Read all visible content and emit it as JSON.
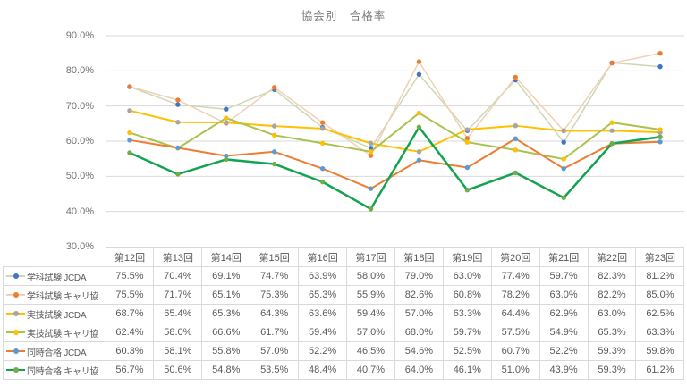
{
  "title": "協会別　合格率",
  "chart_data": {
    "type": "line",
    "title": "協会別　合格率",
    "categories": [
      "第12回",
      "第13回",
      "第14回",
      "第15回",
      "第16回",
      "第17回",
      "第18回",
      "第19回",
      "第20回",
      "第21回",
      "第22回",
      "第23回"
    ],
    "series": [
      {
        "name": "学科試験 JCDA",
        "line_color": "#ccd8b3",
        "marker_color": "#4472c4",
        "line_width": 1.5,
        "values": [
          75.5,
          70.4,
          69.1,
          74.7,
          63.9,
          58.0,
          79.0,
          63.0,
          77.4,
          59.7,
          82.3,
          81.2
        ]
      },
      {
        "name": "学科試験 キャリ協",
        "line_color": "#f3cfb4",
        "marker_color": "#ed7d31",
        "line_width": 1.5,
        "values": [
          75.5,
          71.7,
          65.1,
          75.3,
          65.3,
          55.9,
          82.6,
          60.8,
          78.2,
          63.0,
          82.2,
          85.0
        ]
      },
      {
        "name": "実技試験 JCDA",
        "line_color": "#ffc000",
        "marker_color": "#a5a5a5",
        "line_width": 2,
        "values": [
          68.7,
          65.4,
          65.3,
          64.3,
          63.6,
          59.4,
          57.0,
          63.3,
          64.4,
          62.9,
          63.0,
          62.5
        ]
      },
      {
        "name": "実技試験 キャリ協",
        "line_color": "#aac24e",
        "marker_color": "#ffc000",
        "line_width": 2,
        "values": [
          62.4,
          58.0,
          66.6,
          61.7,
          59.4,
          57.0,
          68.0,
          59.7,
          57.5,
          54.9,
          65.3,
          63.3
        ]
      },
      {
        "name": "同時合格 JCDA",
        "line_color": "#ed7d31",
        "marker_color": "#5b9bd5",
        "line_width": 2,
        "values": [
          60.3,
          58.1,
          55.8,
          57.0,
          52.2,
          46.5,
          54.6,
          52.5,
          60.7,
          52.2,
          59.3,
          59.8
        ]
      },
      {
        "name": "同時合格 キャリ協",
        "line_color": "#14a351",
        "marker_color": "#70ad47",
        "line_width": 2.5,
        "values": [
          56.7,
          50.6,
          54.8,
          53.5,
          48.4,
          40.7,
          64.0,
          46.1,
          51.0,
          43.9,
          59.3,
          61.2
        ]
      }
    ],
    "y_tick_labels": [
      "90.0%",
      "80.0%",
      "70.0%",
      "60.0%",
      "50.0%",
      "40.0%",
      "30.0%"
    ],
    "ylim": [
      30,
      90
    ],
    "grid": true,
    "gridline_color": "#dadada",
    "legend_position": "table-left",
    "value_suffix": "%"
  }
}
